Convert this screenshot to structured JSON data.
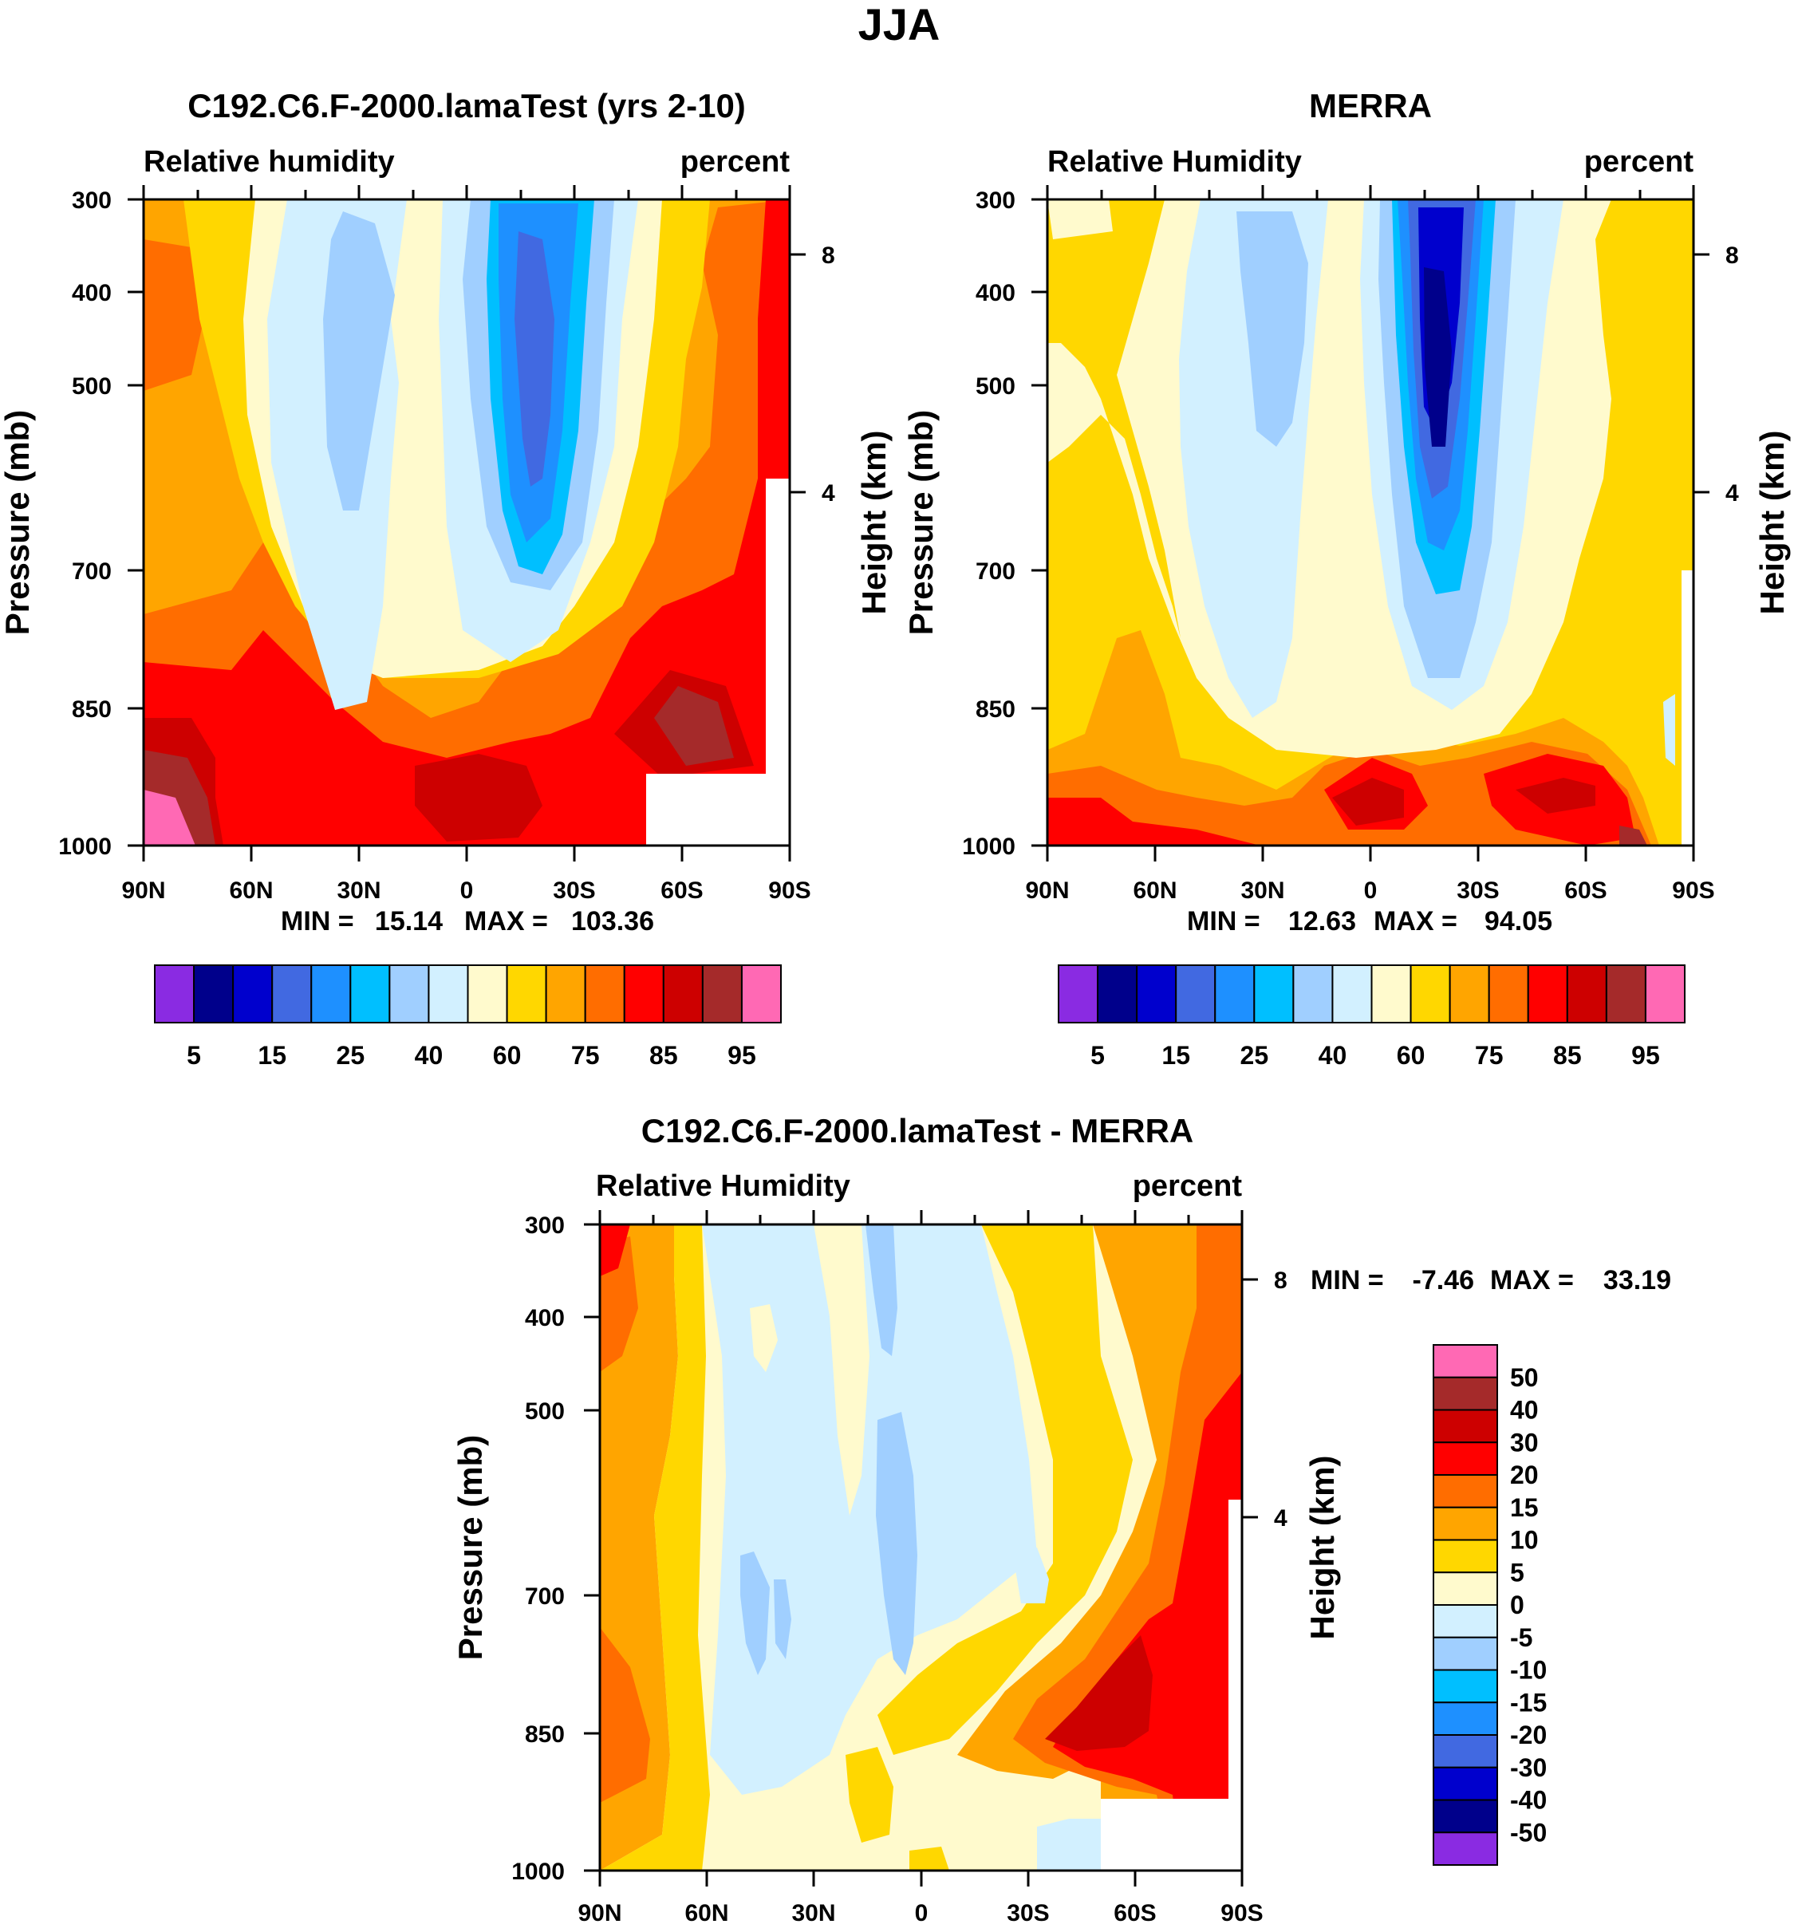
{
  "figure_title": "JJA",
  "colors": {
    "abs_levels": [
      "#8a2be2",
      "#00008b",
      "#0000cd",
      "#4169e1",
      "#1e90ff",
      "#00bfff",
      "#a0cfff",
      "#d2f0ff",
      "#fffacd",
      "#ffd700",
      "#ffa500",
      "#ff6d00",
      "#ff0000",
      "#cd0000",
      "#a52a2a",
      "#ff69b4"
    ],
    "diff_levels": [
      "#8a2be2",
      "#00008b",
      "#0000cd",
      "#4169e1",
      "#1e90ff",
      "#00bfff",
      "#a0cfff",
      "#d2f0ff",
      "#fffacd",
      "#ffd700",
      "#ffa500",
      "#ff6d00",
      "#ff0000",
      "#cd0000",
      "#a52a2a",
      "#ff69b4"
    ]
  },
  "chart_data": [
    {
      "id": "model",
      "type": "heatmap",
      "title": "C192.C6.F-2000.lamaTest (yrs 2-10)",
      "left_label": "Relative humidity",
      "right_label": "percent",
      "ylabel": "Pressure (mb)",
      "ylabel_right": "Height (km)",
      "x_ticks": [
        "90N",
        "60N",
        "30N",
        "0",
        "30S",
        "60S",
        "90S"
      ],
      "y_ticks": [
        "300",
        "400",
        "500",
        "700",
        "850",
        "1000"
      ],
      "y_right_ticks": [
        "8",
        "4"
      ],
      "min_label": "MIN =",
      "min_value": "15.14",
      "max_label": "MAX =",
      "max_value": "103.36",
      "colorbar_labels": [
        "5",
        "15",
        "25",
        "40",
        "60",
        "75",
        "85",
        "95"
      ],
      "xlim": [
        90,
        -90
      ],
      "ylim": [
        1000,
        300
      ]
    },
    {
      "id": "obs",
      "type": "heatmap",
      "title": "MERRA",
      "left_label": "Relative Humidity",
      "right_label": "percent",
      "ylabel": "Pressure (mb)",
      "ylabel_right": "Height (km)",
      "x_ticks": [
        "90N",
        "60N",
        "30N",
        "0",
        "30S",
        "60S",
        "90S"
      ],
      "y_ticks": [
        "300",
        "400",
        "500",
        "700",
        "850",
        "1000"
      ],
      "y_right_ticks": [
        "8",
        "4"
      ],
      "min_label": "MIN =",
      "min_value": "12.63",
      "max_label": "MAX =",
      "max_value": "94.05",
      "colorbar_labels": [
        "5",
        "15",
        "25",
        "40",
        "60",
        "75",
        "85",
        "95"
      ],
      "xlim": [
        90,
        -90
      ],
      "ylim": [
        1000,
        300
      ]
    },
    {
      "id": "diff",
      "type": "heatmap",
      "title": "C192.C6.F-2000.lamaTest - MERRA",
      "left_label": "Relative Humidity",
      "right_label": "percent",
      "ylabel": "Pressure (mb)",
      "ylabel_right": "Height (km)",
      "x_ticks": [
        "90N",
        "60N",
        "30N",
        "0",
        "30S",
        "60S",
        "90S"
      ],
      "y_ticks": [
        "300",
        "400",
        "500",
        "700",
        "850",
        "1000"
      ],
      "y_right_ticks": [
        "8",
        "4"
      ],
      "min_label": "MIN =",
      "min_value": "-7.46",
      "max_label": "MAX =",
      "max_value": "33.19",
      "colorbar_labels": [
        "50",
        "40",
        "30",
        "20",
        "15",
        "10",
        "5",
        "0",
        "-5",
        "-10",
        "-15",
        "-20",
        "-30",
        "-40",
        "-50"
      ],
      "xlim": [
        90,
        -90
      ],
      "ylim": [
        1000,
        300
      ]
    }
  ]
}
